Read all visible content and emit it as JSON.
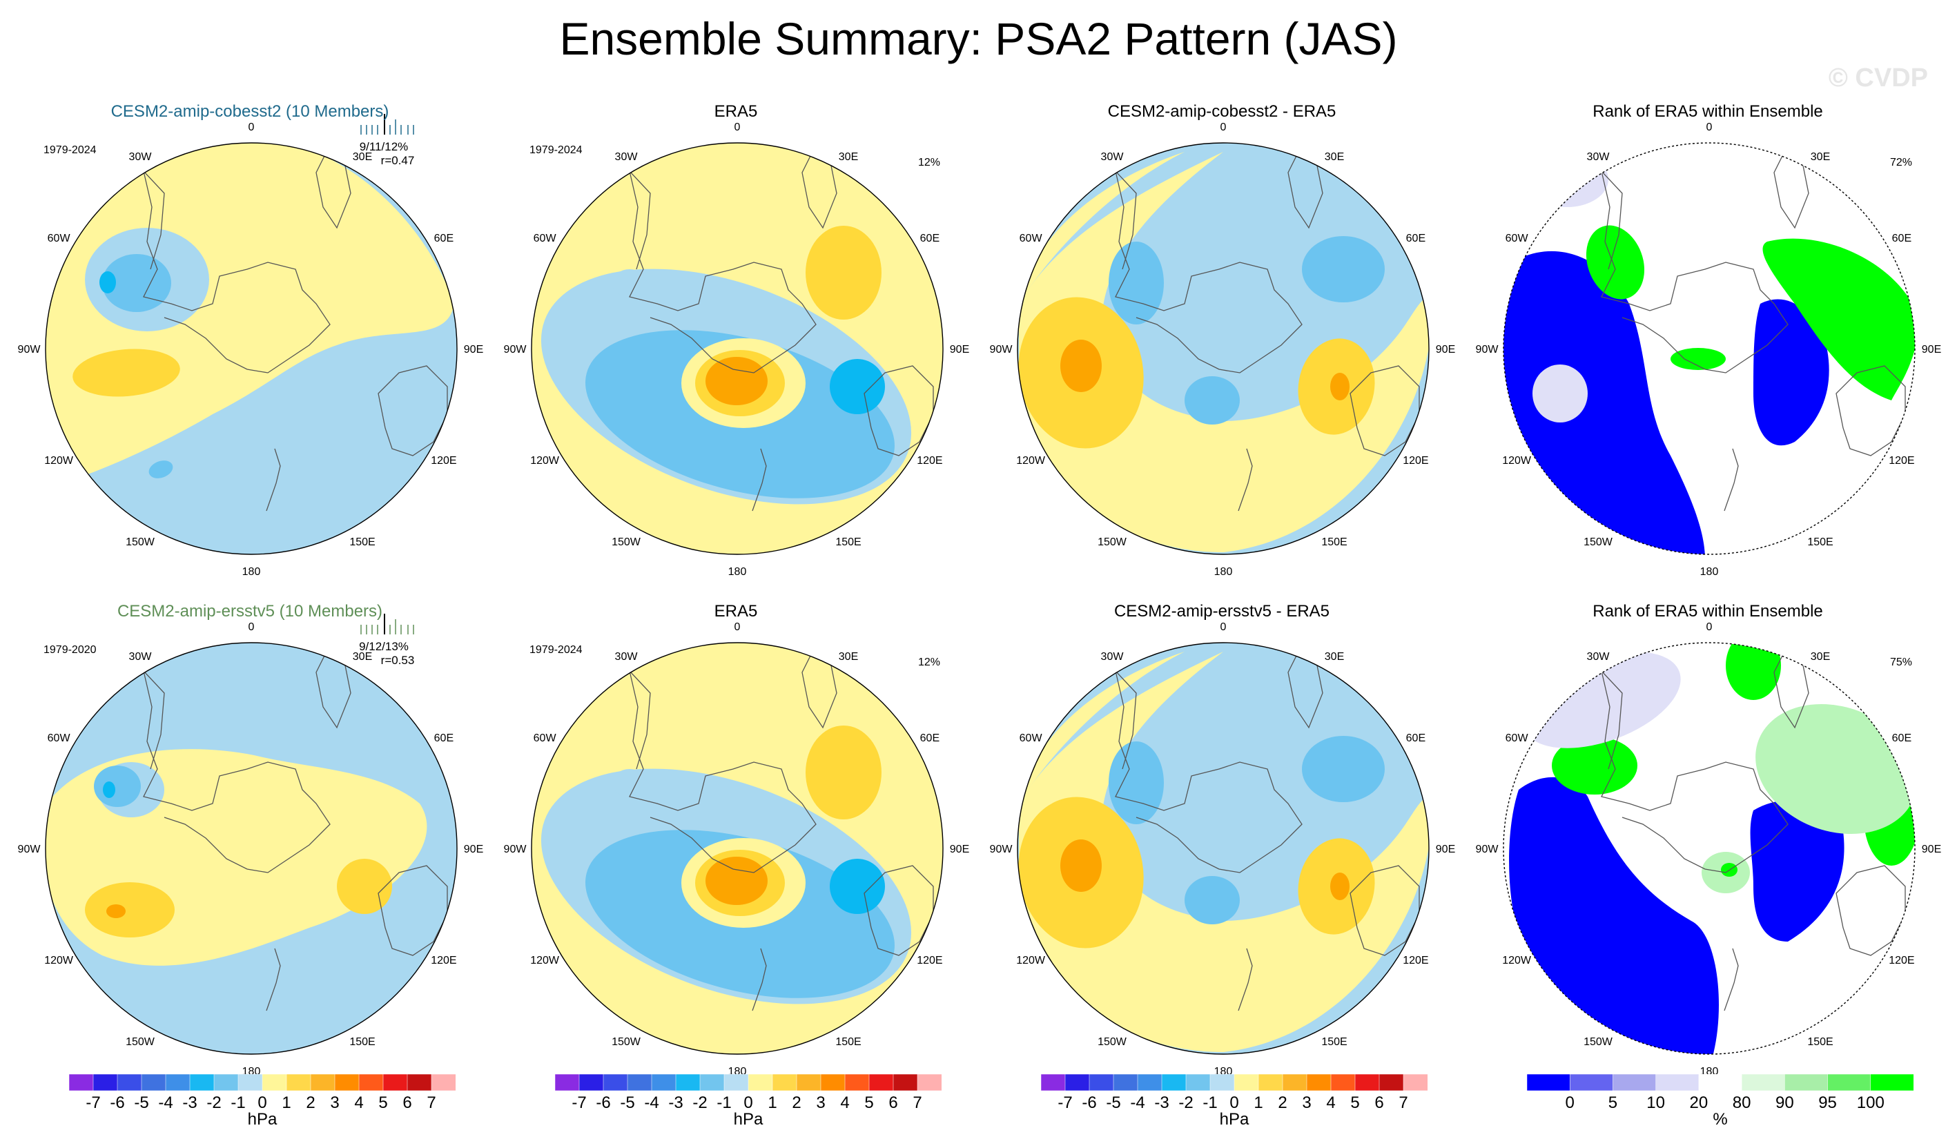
{
  "title": "Ensemble Summary: PSA2 Pattern (JAS)",
  "watermark": "© CVDP",
  "longitude_labels": [
    "0",
    "30E",
    "60E",
    "90E",
    "120E",
    "150E",
    "180",
    "150W",
    "120W",
    "90W",
    "60W",
    "30W"
  ],
  "rows": [
    {
      "panels": [
        {
          "kind": "model",
          "title": "CESM2-amip-cobesst2 (10 Members)",
          "title_color": "#1f6a8c",
          "years": "1979-2024",
          "stats": "9/11/12%",
          "corr": "r=0.47",
          "bar_color": "#1f6a8c"
        },
        {
          "kind": "obs",
          "title": "ERA5",
          "title_color": "#000000",
          "years": "1979-2024",
          "pct": "12%"
        },
        {
          "kind": "diff",
          "title": "CESM2-amip-cobesst2 - ERA5",
          "title_color": "#000000"
        },
        {
          "kind": "rank",
          "title": "Rank of ERA5 within Ensemble",
          "title_color": "#000000",
          "pct": "72%"
        }
      ]
    },
    {
      "panels": [
        {
          "kind": "model",
          "title": "CESM2-amip-ersstv5 (10 Members)",
          "title_color": "#5f8f57",
          "years": "1979-2020",
          "stats": "9/12/13%",
          "corr": "r=0.53",
          "bar_color": "#5f8f57"
        },
        {
          "kind": "obs",
          "title": "ERA5",
          "title_color": "#000000",
          "years": "1979-2024",
          "pct": "12%"
        },
        {
          "kind": "diff",
          "title": "CESM2-amip-ersstv5 - ERA5",
          "title_color": "#000000"
        },
        {
          "kind": "rank",
          "title": "Rank of ERA5 within Ensemble",
          "title_color": "#000000",
          "pct": "75%"
        }
      ]
    }
  ],
  "colorbars": {
    "hpa": {
      "unit": "hPa",
      "ticks": [
        "-7",
        "-6",
        "-5",
        "-4",
        "-3",
        "-2",
        "-1",
        "0",
        "1",
        "2",
        "3",
        "4",
        "5",
        "6",
        "7"
      ],
      "colors": [
        "#8a2be2",
        "#2a1fe6",
        "#3a4ee8",
        "#3f72e0",
        "#3e8fe8",
        "#19b8f2",
        "#72c5ee",
        "#b8def3",
        "#fff699",
        "#ffd84a",
        "#fcb528",
        "#ff8c00",
        "#ff5a1a",
        "#ea1a1a",
        "#c41212",
        "#ffb0b0"
      ]
    },
    "pct": {
      "unit": "%",
      "ticks": [
        "0",
        "5",
        "10",
        "20",
        "80",
        "90",
        "95",
        "100"
      ],
      "colors": [
        "#0000ff",
        "#6464f0",
        "#a8a8ee",
        "#dcdcf8",
        "#ffffff",
        "#dcf8dc",
        "#a8eea8",
        "#64f064",
        "#00ff00"
      ]
    }
  },
  "palette": {
    "neg4": "#0ab8f2",
    "neg3": "#6cc4f0",
    "neg2": "#a9d8f0",
    "neg1": "#b6def3",
    "pos1": "#fff69c",
    "pos2": "#ffd93a",
    "pos3": "#fca500",
    "rank_low": "#0000ff",
    "rank_mid": "#e0e0f7",
    "rank_high": "#00ff00",
    "rank_midhigh": "#b9f5b9"
  }
}
